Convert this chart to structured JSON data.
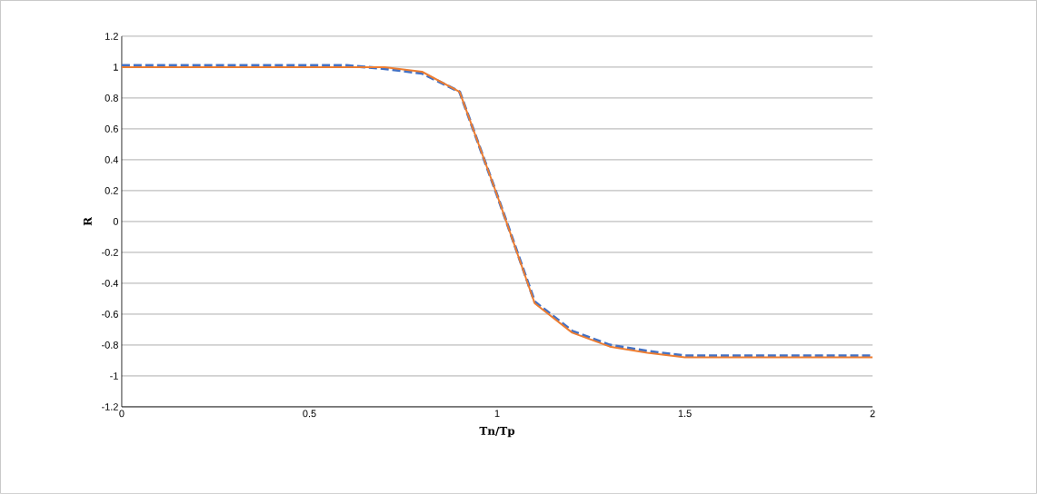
{
  "chart_data": {
    "type": "line",
    "xlabel": "Tn/Tp",
    "ylabel": "R",
    "xlim": [
      0,
      2
    ],
    "ylim": [
      -1.2,
      1.2
    ],
    "xticks": [
      0,
      0.5,
      1,
      1.5,
      2
    ],
    "yticks": [
      {
        "value": -1.2,
        "label": "-1.2"
      },
      {
        "value": -1,
        "label": "-1"
      },
      {
        "value": -0.8,
        "label": "-0.8"
      },
      {
        "value": -0.6,
        "label": "-0.6"
      },
      {
        "value": -0.4,
        "label": "-0.4"
      },
      {
        "value": -0.2,
        "label": "-0.2"
      },
      {
        "value": 0,
        "label": "0"
      },
      {
        "value": 0.2,
        "label": "0.2"
      },
      {
        "value": 0.4,
        "label": "0.4"
      },
      {
        "value": 0.6,
        "label": "0.6"
      },
      {
        "value": 0.8,
        "label": "0.8"
      },
      {
        "value": 1,
        "label": "1"
      },
      {
        "value": 1.2,
        "label": "1.2"
      }
    ],
    "grid": "y",
    "x": [
      0,
      0.1,
      0.2,
      0.3,
      0.4,
      0.5,
      0.6,
      0.7,
      0.8,
      0.9,
      1.0,
      1.1,
      1.2,
      1.3,
      1.4,
      1.5,
      1.6,
      1.7,
      1.8,
      1.9,
      2.0
    ],
    "series": [
      {
        "color": "#4472c4",
        "line_style": "dashed",
        "values": [
          1.01,
          1.01,
          1.01,
          1.01,
          1.01,
          1.01,
          1.01,
          0.99,
          0.96,
          0.84,
          0.17,
          -0.52,
          -0.71,
          -0.8,
          -0.84,
          -0.87,
          -0.87,
          -0.87,
          -0.87,
          -0.87,
          -0.87
        ]
      },
      {
        "color": "#ed7d31",
        "line_style": "solid",
        "values": [
          1.0,
          1.0,
          1.0,
          1.0,
          1.0,
          1.0,
          1.0,
          1.0,
          0.97,
          0.84,
          0.17,
          -0.53,
          -0.72,
          -0.81,
          -0.85,
          -0.88,
          -0.88,
          -0.88,
          -0.88,
          -0.88,
          -0.88
        ]
      }
    ]
  }
}
